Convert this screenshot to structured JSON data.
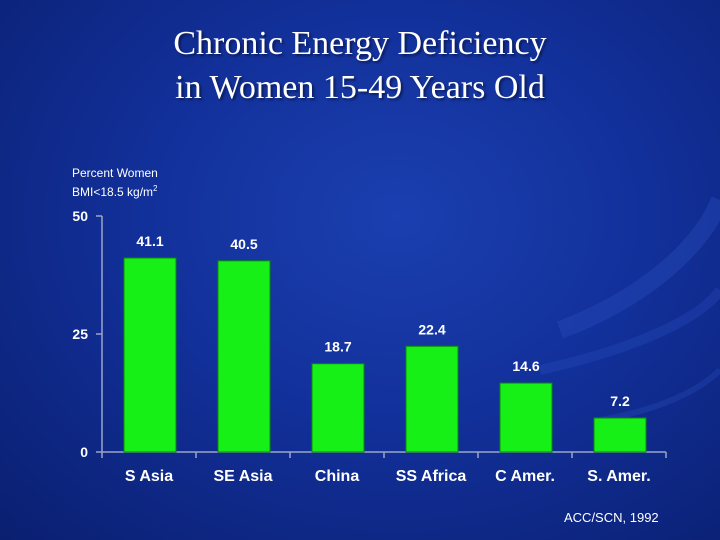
{
  "colors": {
    "bar": "#16f016",
    "axis": "#9aa6c8",
    "text": "#ffffff"
  },
  "chart_data": {
    "type": "bar",
    "title": "Chronic Energy Deficiency in Women 15-49 Years Old",
    "title_lines": [
      "Chronic Energy Deficiency",
      "in Women 15-49 Years Old"
    ],
    "ylabel_line1": "Percent Women",
    "ylabel_line2": "BMI<18.5 kg/m",
    "ylabel_sup": "2",
    "categories": [
      "S Asia",
      "SE Asia",
      "China",
      "SS Africa",
      "C Amer.",
      "S. Amer."
    ],
    "values": [
      41.1,
      40.5,
      18.7,
      22.4,
      14.6,
      7.2
    ],
    "value_labels": [
      "41.1",
      "40.5",
      "18.7",
      "22.4",
      "14.6",
      "7.2"
    ],
    "ylim": [
      0,
      50
    ],
    "yticks": [
      0,
      25,
      50
    ],
    "ytick_labels": [
      "0",
      "25",
      "50"
    ],
    "source": "ACC/SCN, 1992"
  }
}
